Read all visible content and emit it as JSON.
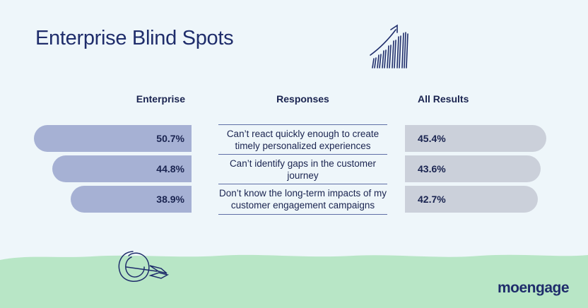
{
  "title": "Enterprise Blind Spots",
  "logo_text": "moengage",
  "colors": {
    "background": "#eef6fa",
    "enterprise_bar": "#a6b1d4",
    "all_results_bar": "#cbd0da",
    "ground": "#b8e6c6",
    "text": "#1a2450"
  },
  "icons": [
    "growth-chart-icon",
    "target-arrow-icon"
  ],
  "chart_data": {
    "type": "bar",
    "title": "Enterprise Blind Spots",
    "column_headers": {
      "left": "Enterprise",
      "middle": "Responses",
      "right": "All Results"
    },
    "categories": [
      "Can’t react quickly enough to create timely personalized experiences",
      "Can’t identify gaps in the customer journey",
      "Don’t know the long-term impacts of my customer engagement campaigns"
    ],
    "series": [
      {
        "name": "Enterprise",
        "values": [
          50.7,
          44.8,
          38.9
        ],
        "labels": [
          "50.7%",
          "44.8%",
          "38.9%"
        ]
      },
      {
        "name": "All Results",
        "values": [
          45.4,
          43.6,
          42.7
        ],
        "labels": [
          "45.4%",
          "43.6%",
          "42.7%"
        ]
      }
    ],
    "unit": "%",
    "orientation": "horizontal-diverging",
    "legend": "column headers"
  }
}
